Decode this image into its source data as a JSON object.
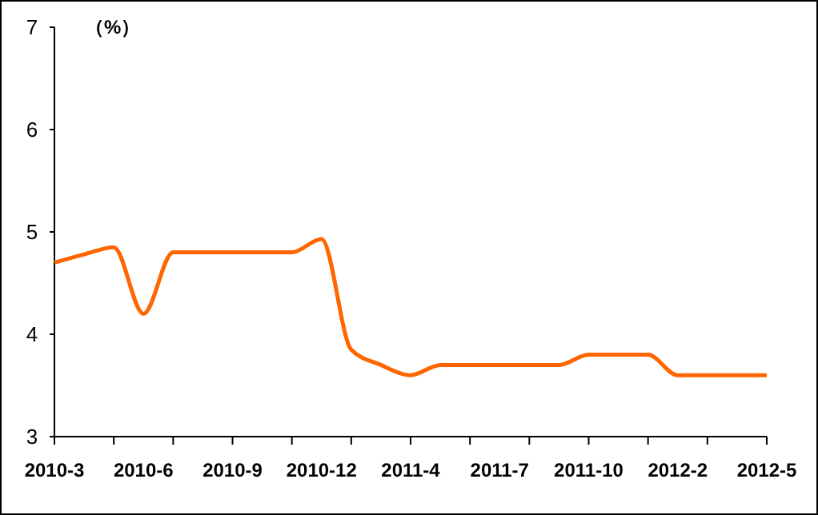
{
  "chart_data": {
    "type": "line",
    "ylabel": "（%）",
    "categories": [
      "2010-3",
      null,
      null,
      "2010-6",
      null,
      null,
      "2010-9",
      null,
      null,
      "2010-12",
      null,
      null,
      "2011-4",
      null,
      null,
      "2011-7",
      null,
      null,
      "2011-10",
      null,
      null,
      "2012-2",
      null,
      null,
      "2012-5"
    ],
    "series": [
      {
        "color": "#ff6600",
        "values": [
          4.7,
          4.78,
          4.85,
          4.2,
          4.8,
          4.8,
          4.8,
          4.8,
          4.8,
          4.93,
          3.85,
          3.7,
          3.6,
          3.7,
          3.7,
          3.7,
          3.7,
          3.7,
          3.8,
          3.8,
          3.8,
          3.6,
          3.6,
          3.6,
          3.6
        ]
      }
    ],
    "ylim": [
      3,
      7
    ],
    "yticks": [
      3,
      4,
      5,
      6,
      7
    ],
    "grid": false,
    "marker": "none",
    "line_style": "solid"
  }
}
